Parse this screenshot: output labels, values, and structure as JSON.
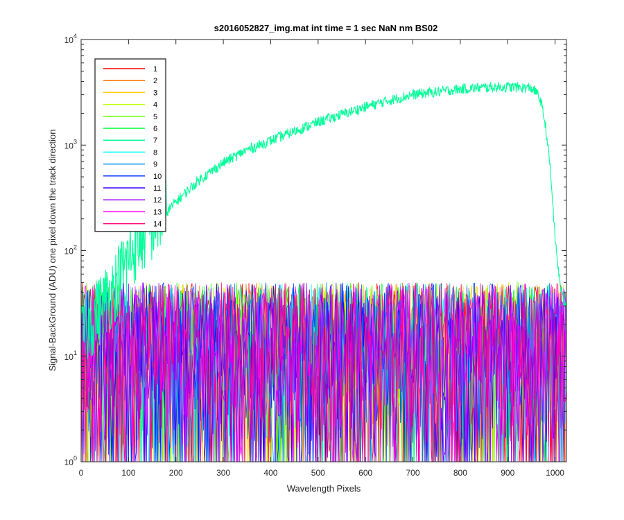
{
  "chart_data": {
    "type": "line",
    "title": "s2016052827_img.mat int time = 1 sec  NaN nm BS02",
    "xlabel": "Wavelength Pixels",
    "ylabel": "Signal-BackGround (ADU) one pixel down the track direction",
    "xlim": [
      0,
      1024
    ],
    "ylim": [
      1,
      10000
    ],
    "yscale": "log",
    "grid": false,
    "legend_position": "top-left",
    "x_ticks": [
      "0",
      "100",
      "200",
      "300",
      "400",
      "500",
      "600",
      "700",
      "800",
      "900",
      "1000"
    ],
    "y_ticks": [
      {
        "value": 1,
        "base": "10",
        "exp": "0"
      },
      {
        "value": 10,
        "base": "10",
        "exp": "1"
      },
      {
        "value": 100,
        "base": "10",
        "exp": "2"
      },
      {
        "value": 1000,
        "base": "10",
        "exp": "3"
      },
      {
        "value": 10000,
        "base": "10",
        "exp": "4"
      }
    ],
    "series": [
      {
        "name": "1",
        "color": "#ff0000",
        "kind": "noise"
      },
      {
        "name": "2",
        "color": "#ff7300",
        "kind": "noise"
      },
      {
        "name": "3",
        "color": "#ffcc00",
        "kind": "noise"
      },
      {
        "name": "4",
        "color": "#bfff00",
        "kind": "noise"
      },
      {
        "name": "5",
        "color": "#66ff00",
        "kind": "noise"
      },
      {
        "name": "6",
        "color": "#00ff33",
        "kind": "noise"
      },
      {
        "name": "7",
        "color": "#00ff99",
        "kind": "signal",
        "x": [
          0,
          40,
          60,
          80,
          100,
          120,
          150,
          180,
          200,
          250,
          300,
          350,
          400,
          450,
          500,
          550,
          600,
          650,
          700,
          750,
          800,
          850,
          880,
          900,
          940,
          950,
          960,
          970,
          980,
          990,
          1000,
          1010,
          1020,
          1024
        ],
        "y": [
          15,
          28,
          38,
          55,
          85,
          120,
          170,
          230,
          290,
          470,
          680,
          900,
          1100,
          1350,
          1650,
          1950,
          2300,
          2650,
          3000,
          3200,
          3400,
          3500,
          3550,
          3550,
          3500,
          3450,
          3200,
          2600,
          1500,
          600,
          130,
          50,
          30,
          35
        ]
      },
      {
        "name": "8",
        "color": "#00ffff",
        "kind": "noise"
      },
      {
        "name": "9",
        "color": "#0099ff",
        "kind": "noise"
      },
      {
        "name": "10",
        "color": "#0033ff",
        "kind": "noise"
      },
      {
        "name": "11",
        "color": "#3300ff",
        "kind": "noise"
      },
      {
        "name": "12",
        "color": "#9900ff",
        "kind": "noise"
      },
      {
        "name": "13",
        "color": "#ff00ff",
        "kind": "noise"
      },
      {
        "name": "14",
        "color": "#ff0080",
        "kind": "noise"
      }
    ],
    "noise_range": [
      1,
      50
    ]
  }
}
